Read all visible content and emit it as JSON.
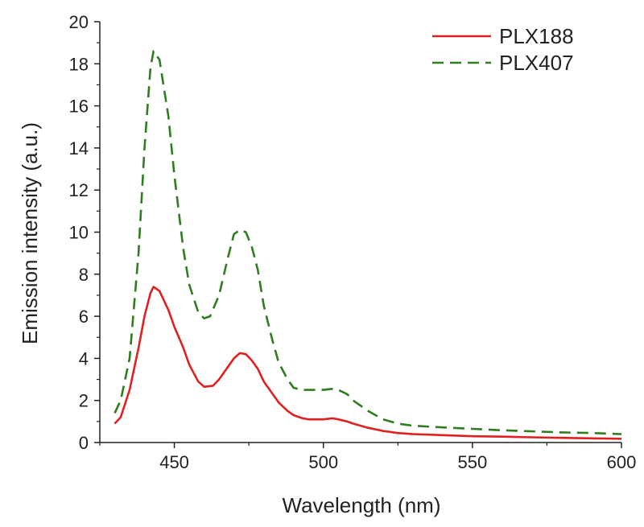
{
  "chart_data": {
    "type": "line",
    "title": "",
    "xlabel": "Wavelength (nm)",
    "ylabel": "Emission intensity (a.u.)",
    "xlim": [
      425,
      600
    ],
    "ylim": [
      0,
      20
    ],
    "xticks": [
      450,
      500,
      550,
      600
    ],
    "yticks": [
      0,
      2,
      4,
      6,
      8,
      10,
      12,
      14,
      16,
      18,
      20
    ],
    "grid": false,
    "legend_position": "top-right",
    "series": [
      {
        "name": "PLX188",
        "color": "#e02020",
        "style": "solid",
        "x": [
          430,
          432,
          435,
          438,
          440,
          442,
          443,
          445,
          448,
          450,
          453,
          455,
          458,
          460,
          463,
          465,
          468,
          470,
          472,
          474,
          476,
          478,
          480,
          483,
          485,
          488,
          490,
          493,
          495,
          500,
          503,
          505,
          508,
          510,
          515,
          520,
          525,
          530,
          540,
          550,
          560,
          570,
          580,
          590,
          600
        ],
        "y": [
          0.9,
          1.2,
          2.5,
          4.5,
          6.0,
          7.1,
          7.4,
          7.2,
          6.3,
          5.5,
          4.5,
          3.7,
          2.9,
          2.65,
          2.7,
          3.0,
          3.6,
          4.0,
          4.25,
          4.2,
          3.9,
          3.5,
          2.9,
          2.3,
          1.9,
          1.5,
          1.3,
          1.15,
          1.1,
          1.1,
          1.15,
          1.1,
          1.0,
          0.9,
          0.7,
          0.55,
          0.45,
          0.4,
          0.35,
          0.3,
          0.28,
          0.25,
          0.22,
          0.2,
          0.18
        ]
      },
      {
        "name": "PLX407",
        "color": "#2e7d1f",
        "style": "dashed",
        "x": [
          430,
          432,
          435,
          438,
          440,
          442,
          443,
          445,
          448,
          450,
          453,
          455,
          458,
          460,
          462,
          465,
          468,
          470,
          472,
          474,
          476,
          478,
          480,
          483,
          485,
          488,
          490,
          493,
          495,
          500,
          503,
          505,
          508,
          510,
          515,
          520,
          525,
          530,
          540,
          550,
          560,
          570,
          580,
          590,
          600
        ],
        "y": [
          1.4,
          2.0,
          4.0,
          9.0,
          14.0,
          17.8,
          18.6,
          18.2,
          15.5,
          12.7,
          9.2,
          7.5,
          6.2,
          5.9,
          6.0,
          7.0,
          8.8,
          9.9,
          10.1,
          10.0,
          9.3,
          8.2,
          6.5,
          4.8,
          3.8,
          3.0,
          2.6,
          2.5,
          2.5,
          2.5,
          2.55,
          2.5,
          2.3,
          2.0,
          1.5,
          1.1,
          0.9,
          0.8,
          0.72,
          0.65,
          0.58,
          0.53,
          0.48,
          0.45,
          0.4
        ]
      }
    ]
  }
}
